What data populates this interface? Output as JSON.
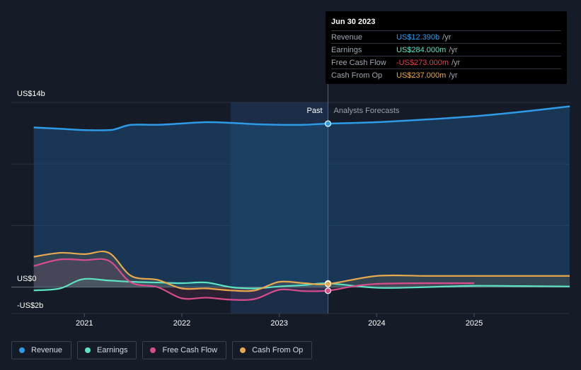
{
  "chart_data": {
    "type": "line",
    "y_axis_labels": {
      "top": "US$14b",
      "zero": "US$0",
      "bottom": "-US$2b"
    },
    "ylim": [
      -2,
      14
    ],
    "x_ticks": [
      {
        "label": "2021",
        "x": 2021.0
      },
      {
        "label": "2022",
        "x": 2022.0
      },
      {
        "label": "2023",
        "x": 2023.0
      },
      {
        "label": "2024",
        "x": 2024.0
      },
      {
        "label": "2025",
        "x": 2025.0
      }
    ],
    "xlim": [
      2020.25,
      2025.98
    ],
    "past_label": "Past",
    "forecast_label": "Analysts Forecasts",
    "forecast_start": 2023.5,
    "shade_start": 2022.5,
    "grid": true,
    "series": [
      {
        "name": "Revenue",
        "color": "#2d9be6",
        "points": [
          [
            2020.48,
            12.1
          ],
          [
            2020.75,
            12.0
          ],
          [
            2021.0,
            11.9
          ],
          [
            2021.25,
            11.9
          ],
          [
            2021.33,
            12.0
          ],
          [
            2021.48,
            12.3
          ],
          [
            2021.75,
            12.3
          ],
          [
            2022.0,
            12.4
          ],
          [
            2022.25,
            12.5
          ],
          [
            2022.5,
            12.45
          ],
          [
            2022.75,
            12.35
          ],
          [
            2023.0,
            12.3
          ],
          [
            2023.25,
            12.3
          ],
          [
            2023.5,
            12.39
          ],
          [
            2024.0,
            12.5
          ],
          [
            2024.5,
            12.7
          ],
          [
            2025.0,
            12.95
          ],
          [
            2025.5,
            13.3
          ],
          [
            2025.98,
            13.7
          ]
        ]
      },
      {
        "name": "Earnings",
        "color": "#5de2c4",
        "points": [
          [
            2020.48,
            -0.25
          ],
          [
            2020.75,
            -0.1
          ],
          [
            2020.98,
            0.6
          ],
          [
            2021.25,
            0.5
          ],
          [
            2021.5,
            0.4
          ],
          [
            2021.75,
            0.35
          ],
          [
            2022.0,
            0.3
          ],
          [
            2022.25,
            0.35
          ],
          [
            2022.5,
            0.0
          ],
          [
            2022.75,
            -0.1
          ],
          [
            2023.0,
            0.05
          ],
          [
            2023.25,
            0.15
          ],
          [
            2023.5,
            0.284
          ],
          [
            2024.0,
            -0.05
          ],
          [
            2024.5,
            0.0
          ],
          [
            2025.0,
            0.1
          ],
          [
            2025.5,
            0.08
          ],
          [
            2025.98,
            0.05
          ]
        ]
      },
      {
        "name": "Free Cash Flow",
        "color": "#d94c8e",
        "points": [
          [
            2020.48,
            1.6
          ],
          [
            2020.75,
            2.1
          ],
          [
            2021.0,
            2.05
          ],
          [
            2021.25,
            2.0
          ],
          [
            2021.48,
            0.35
          ],
          [
            2021.75,
            0.0
          ],
          [
            2022.0,
            -0.85
          ],
          [
            2022.25,
            -0.8
          ],
          [
            2022.5,
            -0.95
          ],
          [
            2022.75,
            -0.9
          ],
          [
            2023.0,
            -0.2
          ],
          [
            2023.25,
            -0.3
          ],
          [
            2023.5,
            -0.273
          ],
          [
            2023.75,
            0.05
          ],
          [
            2024.0,
            0.25
          ],
          [
            2024.5,
            0.3
          ],
          [
            2025.0,
            0.3
          ]
        ]
      },
      {
        "name": "Cash From Op",
        "color": "#e8a94e",
        "points": [
          [
            2020.48,
            2.3
          ],
          [
            2020.75,
            2.6
          ],
          [
            2021.0,
            2.5
          ],
          [
            2021.25,
            2.6
          ],
          [
            2021.48,
            0.85
          ],
          [
            2021.75,
            0.55
          ],
          [
            2022.0,
            -0.1
          ],
          [
            2022.25,
            -0.1
          ],
          [
            2022.5,
            -0.25
          ],
          [
            2022.75,
            -0.25
          ],
          [
            2023.0,
            0.4
          ],
          [
            2023.25,
            0.3
          ],
          [
            2023.5,
            0.237
          ],
          [
            2024.0,
            0.85
          ],
          [
            2024.5,
            0.85
          ],
          [
            2025.0,
            0.85
          ],
          [
            2025.5,
            0.85
          ],
          [
            2025.98,
            0.85
          ]
        ]
      }
    ]
  },
  "tooltip": {
    "date": "Jun 30 2023",
    "rows": [
      {
        "label": "Revenue",
        "value": "US$12.390b",
        "unit": "/yr",
        "color": "#2d9be6"
      },
      {
        "label": "Earnings",
        "value": "US$284.000m",
        "unit": "/yr",
        "color": "#5de2c4"
      },
      {
        "label": "Free Cash Flow",
        "value": "-US$273.000m",
        "unit": "/yr",
        "color": "#e0434b"
      },
      {
        "label": "Cash From Op",
        "value": "US$237.000m",
        "unit": "/yr",
        "color": "#e8a94e"
      }
    ]
  },
  "legend": [
    {
      "label": "Revenue",
      "color": "#2d9be6"
    },
    {
      "label": "Earnings",
      "color": "#5de2c4"
    },
    {
      "label": "Free Cash Flow",
      "color": "#d94c8e"
    },
    {
      "label": "Cash From Op",
      "color": "#e8a94e"
    }
  ]
}
